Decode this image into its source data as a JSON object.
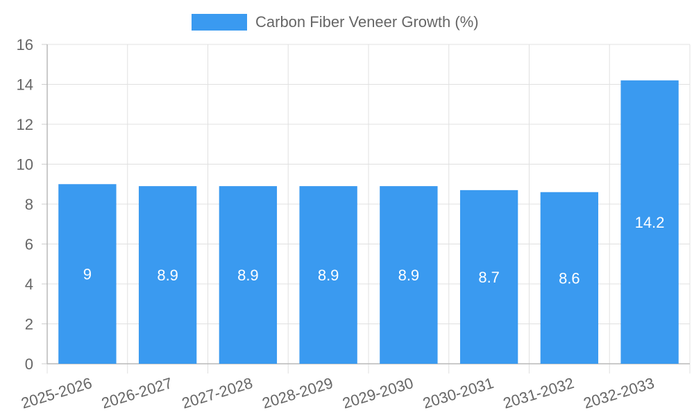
{
  "chart_data": {
    "type": "bar",
    "title": "",
    "xlabel": "",
    "ylabel": "",
    "categories": [
      "2025-2026",
      "2026-2027",
      "2027-2028",
      "2028-2029",
      "2029-2030",
      "2030-2031",
      "2031-2032",
      "2032-2033"
    ],
    "series": [
      {
        "name": "Carbon Fiber Veneer Growth (%)",
        "values": [
          9,
          8.9,
          8.9,
          8.9,
          8.9,
          8.7,
          8.6,
          14.2
        ],
        "color": "#3a9af0"
      }
    ],
    "ylim": [
      0,
      16
    ],
    "yticks": [
      0,
      2,
      4,
      6,
      8,
      10,
      12,
      14,
      16
    ],
    "grid": true,
    "legend_position": "top-center",
    "data_labels": true
  }
}
